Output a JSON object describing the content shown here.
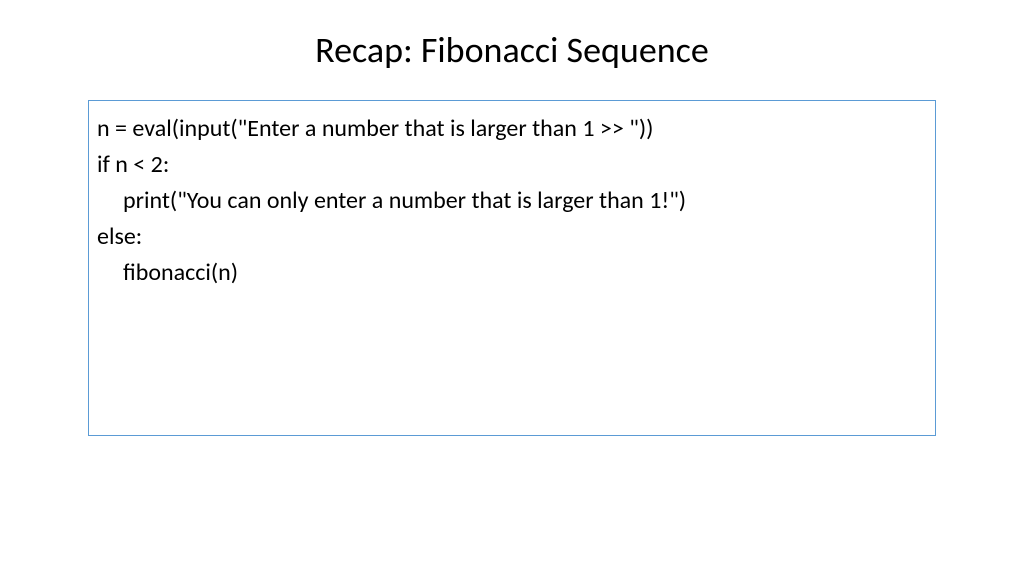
{
  "slide": {
    "title": "Recap: Fibonacci Sequence",
    "title_fontsize": 36,
    "title_color": "#000000",
    "background_color": "#ffffff",
    "code_box": {
      "border_color": "#5b9bd5",
      "border_width": 1,
      "background_color": "#ffffff",
      "text_color": "#000000",
      "fontsize": 24,
      "lines": [
        {
          "text": "n = eval(input(\"Enter a number that is larger than 1 >> \"))",
          "indent": 0
        },
        {
          "text": "if n < 2:",
          "indent": 0
        },
        {
          "text": "print(\"You can only enter a number that is larger than 1!\")",
          "indent": 1
        },
        {
          "text": "else:",
          "indent": 0
        },
        {
          "text": "fibonacci(n)",
          "indent": 1
        }
      ]
    }
  }
}
